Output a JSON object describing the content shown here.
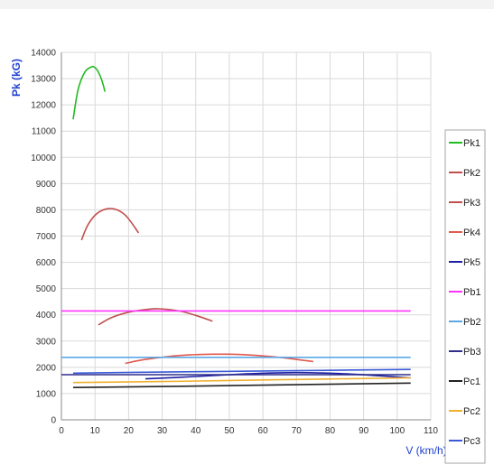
{
  "chart_data": {
    "type": "line",
    "title": "",
    "xlabel": "V (km/h)",
    "ylabel": "Pk (kG)",
    "xlim": [
      0,
      110
    ],
    "ylim": [
      0,
      14000
    ],
    "x_ticks": [
      "0",
      "10",
      "20",
      "30",
      "40",
      "50",
      "60",
      "70",
      "80",
      "90",
      "100",
      "110"
    ],
    "y_ticks": [
      "0",
      "1000",
      "2000",
      "3000",
      "4000",
      "5000",
      "6000",
      "7000",
      "8000",
      "9000",
      "10000",
      "11000",
      "12000",
      "13000",
      "14000"
    ],
    "grid": true,
    "legend_position": "right",
    "series": [
      {
        "name": "Pk1",
        "color": "#22bb22",
        "x": [
          3.5,
          5,
          7,
          9,
          10,
          11,
          12,
          13
        ],
        "y": [
          11450,
          12600,
          13250,
          13450,
          13420,
          13250,
          12950,
          12500
        ]
      },
      {
        "name": "Pk2",
        "color": "#c0504d",
        "x": [
          6,
          8,
          11,
          15,
          19,
          23
        ],
        "y": [
          6850,
          7450,
          7900,
          8050,
          7800,
          7120
        ]
      },
      {
        "name": "Pk3",
        "color": "#c0504d",
        "x": [
          11,
          15,
          20,
          25,
          29,
          35,
          40,
          45
        ],
        "y": [
          3620,
          3900,
          4100,
          4200,
          4230,
          4150,
          3980,
          3760
        ]
      },
      {
        "name": "Pk4",
        "color": "#e05a4e",
        "x": [
          19,
          25,
          35,
          45,
          55,
          65,
          75
        ],
        "y": [
          2150,
          2300,
          2450,
          2500,
          2480,
          2380,
          2220
        ]
      },
      {
        "name": "Pk5",
        "color": "#1f1fa3",
        "x": [
          25,
          40,
          55,
          70,
          85,
          104
        ],
        "y": [
          1560,
          1650,
          1750,
          1800,
          1750,
          1600
        ]
      },
      {
        "name": "Pb1",
        "color": "#ff33ff",
        "x": [
          0,
          104
        ],
        "y": [
          4150,
          4150
        ]
      },
      {
        "name": "Pb2",
        "color": "#5aa9e6",
        "x": [
          0,
          104
        ],
        "y": [
          2380,
          2380
        ]
      },
      {
        "name": "Pb3",
        "color": "#2e2e8c",
        "x": [
          0,
          104
        ],
        "y": [
          1720,
          1720
        ]
      },
      {
        "name": "Pc1",
        "color": "#222222",
        "x": [
          3.5,
          30,
          60,
          104
        ],
        "y": [
          1230,
          1270,
          1320,
          1400
        ]
      },
      {
        "name": "Pc2",
        "color": "#f0b030",
        "x": [
          3.5,
          30,
          60,
          104
        ],
        "y": [
          1420,
          1460,
          1520,
          1600
        ]
      },
      {
        "name": "Pc3",
        "color": "#3a5ad6",
        "x": [
          3.5,
          30,
          60,
          104
        ],
        "y": [
          1780,
          1820,
          1860,
          1920
        ]
      }
    ]
  }
}
